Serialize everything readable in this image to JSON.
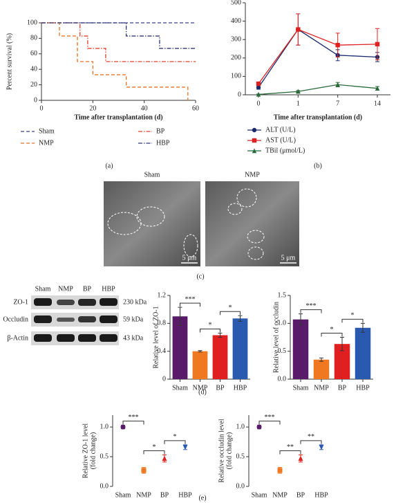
{
  "chart_data": [
    {
      "type": "step",
      "ylabel": "Percent survival (%)",
      "xlabel": "Time after transplantation (d)",
      "xlim": [
        0,
        60
      ],
      "xticks": [
        0,
        20,
        40,
        60
      ],
      "ylim": [
        0,
        100
      ],
      "yticks": [
        0,
        20,
        40,
        60,
        80,
        100
      ],
      "series": [
        {
          "name": "Sham",
          "color": "#3b3f8f",
          "dash": "dashed",
          "x": [
            0,
            60
          ],
          "values": [
            100,
            100
          ]
        },
        {
          "name": "BP",
          "color": "#e0402a",
          "dash": "dash-dot",
          "x": [
            0,
            15,
            15,
            18,
            18,
            25,
            25,
            60
          ],
          "values": [
            100,
            100,
            83,
            83,
            67,
            67,
            50,
            50
          ]
        },
        {
          "name": "NMP",
          "color": "#f07020",
          "dash": "dashed",
          "x": [
            0,
            7,
            7,
            14,
            14,
            20,
            20,
            33,
            33,
            57,
            57
          ],
          "values": [
            100,
            100,
            83,
            83,
            50,
            50,
            33,
            33,
            17,
            17,
            0
          ]
        },
        {
          "name": "HBP",
          "color": "#2f3878",
          "dash": "dash-dot",
          "x": [
            0,
            33,
            33,
            46,
            46,
            60
          ],
          "values": [
            100,
            100,
            83,
            83,
            67,
            67
          ]
        }
      ]
    },
    {
      "type": "line",
      "xlabel": "Time after transplantation (d)",
      "categories": [
        "0",
        "1",
        "7",
        "14"
      ],
      "ylim": [
        0,
        500
      ],
      "yticks": [
        0,
        100,
        200,
        300,
        400,
        500
      ],
      "series": [
        {
          "name": "ALT (U/L)",
          "color": "#1a2a6c",
          "marker": "circle",
          "values": [
            40,
            355,
            215,
            205
          ],
          "errors": [
            10,
            85,
            30,
            25
          ]
        },
        {
          "name": "AST (U/L)",
          "color": "#e02020",
          "marker": "square",
          "values": [
            60,
            355,
            270,
            275
          ],
          "errors": [
            8,
            85,
            65,
            85
          ]
        },
        {
          "name": "TBil (μmol/L)",
          "color": "#2a6a3a",
          "marker": "triangle",
          "values": [
            2,
            18,
            55,
            35
          ],
          "errors": [
            2,
            5,
            12,
            10
          ]
        }
      ]
    },
    {
      "type": "bar",
      "ylabel": "Relative level of ZO-1",
      "categories": [
        "Sham",
        "NMP",
        "BP",
        "HBP"
      ],
      "values": [
        0.9,
        0.4,
        0.63,
        0.87
      ],
      "errors": [
        0.13,
        0.01,
        0.03,
        0.04
      ],
      "colors": [
        "#5a1a6a",
        "#f07820",
        "#e02020",
        "#2a5ab0"
      ],
      "ylim": [
        0,
        1.2
      ],
      "yticks": [
        0,
        0.4,
        0.8,
        1.2
      ],
      "annotations": [
        {
          "text": "***",
          "between": [
            "Sham",
            "NMP"
          ]
        },
        {
          "text": "*",
          "between": [
            "NMP",
            "BP"
          ]
        },
        {
          "text": "*",
          "between": [
            "BP",
            "HBP"
          ]
        }
      ]
    },
    {
      "type": "bar",
      "ylabel": "Relative level of occludin",
      "categories": [
        "Sham",
        "NMP",
        "BP",
        "HBP"
      ],
      "values": [
        1.07,
        0.35,
        0.63,
        0.92
      ],
      "errors": [
        0.1,
        0.03,
        0.12,
        0.08
      ],
      "colors": [
        "#5a1a6a",
        "#f07820",
        "#e02020",
        "#2a5ab0"
      ],
      "ylim": [
        0,
        1.5
      ],
      "yticks": [
        {
          "value": 0,
          "label": "0.0"
        },
        {
          "value": 0.5,
          "label": "0.5"
        },
        {
          "value": 1,
          "label": "1.0"
        },
        {
          "value": 1.5,
          "label": "1.5"
        }
      ],
      "annotations": [
        {
          "text": "***",
          "between": [
            "Sham",
            "NMP"
          ]
        },
        {
          "text": "*",
          "between": [
            "NMP",
            "BP"
          ]
        },
        {
          "text": "*",
          "between": [
            "BP",
            "HBP"
          ]
        }
      ]
    },
    {
      "type": "scatter",
      "ylabel": [
        "Relative ZO-1 level",
        "(fold change)"
      ],
      "categories": [
        "Sham",
        "NMP",
        "BP",
        "HBP"
      ],
      "values": [
        1.0,
        0.27,
        0.47,
        0.66
      ],
      "errors": [
        0.03,
        0.05,
        0.06,
        0.04
      ],
      "colors": [
        "#5a1a6a",
        "#f07820",
        "#e02020",
        "#2a5ab0"
      ],
      "markers": [
        "circle",
        "square",
        "triangle",
        "triangle-down"
      ],
      "ylim": [
        0,
        1.2
      ],
      "yticks": [
        {
          "value": 0,
          "label": "0.0"
        },
        {
          "value": 0.5,
          "label": "0.5"
        },
        {
          "value": 1,
          "label": "1.0"
        }
      ],
      "annotations": [
        {
          "text": "***",
          "between": [
            "Sham",
            "NMP"
          ]
        },
        {
          "text": "*",
          "between": [
            "NMP",
            "BP"
          ]
        },
        {
          "text": "*",
          "between": [
            "BP",
            "HBP"
          ]
        }
      ]
    },
    {
      "type": "scatter",
      "ylabel": [
        "Relative occludin level",
        "(fold change)"
      ],
      "categories": [
        "Sham",
        "NMP",
        "BP",
        "HBP"
      ],
      "values": [
        1.0,
        0.27,
        0.47,
        0.66
      ],
      "errors": [
        0.03,
        0.05,
        0.06,
        0.04
      ],
      "colors": [
        "#5a1a6a",
        "#f07820",
        "#e02020",
        "#2a5ab0"
      ],
      "markers": [
        "circle",
        "square",
        "triangle",
        "triangle-down"
      ],
      "ylim": [
        0,
        1.2
      ],
      "yticks": [
        {
          "value": 0,
          "label": "0.0"
        },
        {
          "value": 0.5,
          "label": "0.5"
        },
        {
          "value": 1,
          "label": "1.0"
        }
      ],
      "annotations": [
        {
          "text": "***",
          "between": [
            "Sham",
            "NMP"
          ]
        },
        {
          "text": "**",
          "between": [
            "NMP",
            "BP"
          ]
        },
        {
          "text": "**",
          "between": [
            "BP",
            "HBP"
          ]
        }
      ]
    }
  ],
  "micrographs": {
    "labels": [
      "Sham",
      "NMP"
    ],
    "scale_bars": [
      "5 μm",
      "5 μm"
    ]
  },
  "western_blot": {
    "lanes": [
      "Sham",
      "NMP",
      "BP",
      "HBP"
    ],
    "proteins": [
      "ZO-1",
      "Occludin",
      "β-Actin"
    ],
    "sizes": [
      "230 kDa",
      "59 kDa",
      "43 kDa"
    ]
  },
  "panel_labels": [
    "(a)",
    "(b)",
    "(c)",
    "(d)",
    "(e)"
  ]
}
